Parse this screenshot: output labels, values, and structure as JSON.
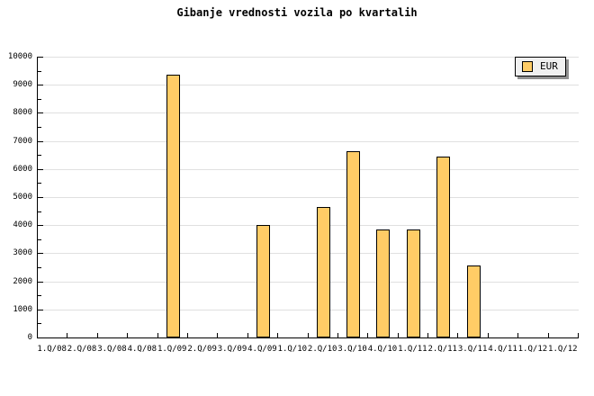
{
  "title": "Gibanje vrednosti vozila po kvartalih",
  "legend": {
    "label": "EUR"
  },
  "colors": {
    "background": "#FFFFFF",
    "bar_fill": "#FFCC66",
    "bar_border": "#000000",
    "grid_line": "#E0E0E0",
    "axis": "#000000",
    "text": "#000000",
    "legend_bg": "#F0F0F0",
    "legend_shadow": "#909090"
  },
  "chart_data": {
    "type": "bar",
    "title": "Gibanje vrednosti vozila po kvartalih",
    "categories": [
      "1.Q/08",
      "2.Q/08",
      "3.Q/08",
      "4.Q/08",
      "1.Q/09",
      "2.Q/09",
      "3.Q/09",
      "4.Q/09",
      "1.Q/10",
      "2.Q/10",
      "3.Q/10",
      "4.Q/10",
      "1.Q/11",
      "2.Q/11",
      "3.Q/11",
      "4.Q/11",
      "1.Q/12",
      "1.Q/12"
    ],
    "series": [
      {
        "name": "EUR",
        "values": [
          0,
          0,
          0,
          0,
          9350,
          0,
          0,
          4000,
          0,
          4650,
          6650,
          3850,
          3850,
          6450,
          2550,
          0,
          0,
          0
        ]
      }
    ],
    "xlabel": "",
    "ylabel": "",
    "ylim": [
      0,
      10000
    ],
    "ytick_interval": 1000,
    "yminor_tick_interval": 500,
    "yticks": [
      "0",
      "1000",
      "2000",
      "3000",
      "4000",
      "5000",
      "6000",
      "7000",
      "8000",
      "9000",
      "10000"
    ],
    "grid": "horizontal-major",
    "legend_position": "top-right"
  }
}
